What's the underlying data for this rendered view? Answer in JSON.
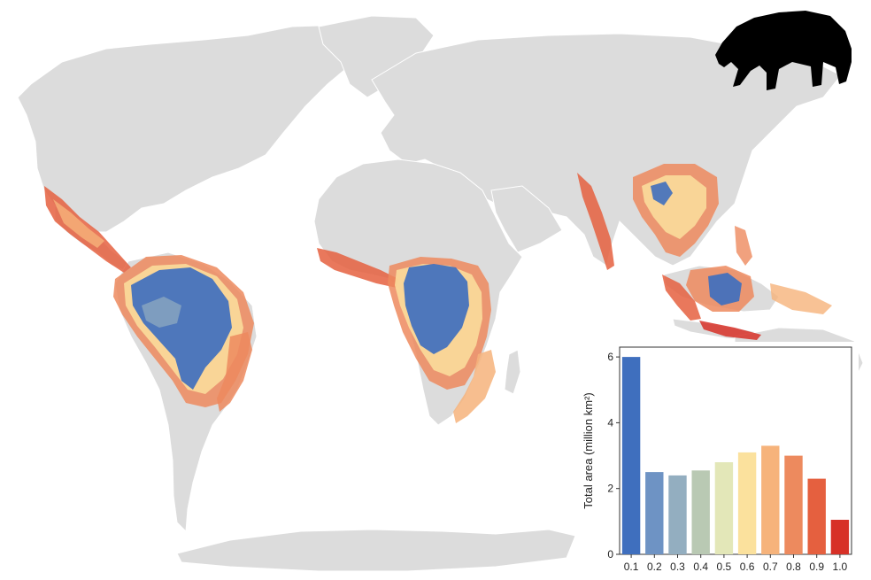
{
  "map": {
    "land_color": "#dcdcdc",
    "ocean_color": "#ffffff",
    "legend_gradient": [
      "#3a6fbf",
      "#e9eec0",
      "#d9242b"
    ],
    "silhouette_icon": "tapir-icon"
  },
  "chart_data": {
    "type": "bar",
    "categories": [
      "0.1",
      "0.2",
      "0.3",
      "0.4",
      "0.5",
      "0.6",
      "0.7",
      "0.8",
      "0.9",
      "1.0"
    ],
    "values": [
      6.0,
      2.5,
      2.4,
      2.55,
      2.8,
      3.1,
      3.3,
      3.0,
      2.3,
      1.05
    ],
    "colors": [
      "#3f6fbe",
      "#6e93c4",
      "#93aec0",
      "#b9c9b3",
      "#e3e7b8",
      "#fbe19d",
      "#f6b37b",
      "#ed8a5e",
      "#e5603f",
      "#d73027"
    ],
    "xlabel": "",
    "ylabel": "Total area (million km²)",
    "ylim": [
      0,
      6.3
    ],
    "yticks": [
      "0",
      "2",
      "4",
      "6"
    ],
    "ytick_values": [
      0,
      2,
      4,
      6
    ],
    "grid": false,
    "legend": "none"
  }
}
